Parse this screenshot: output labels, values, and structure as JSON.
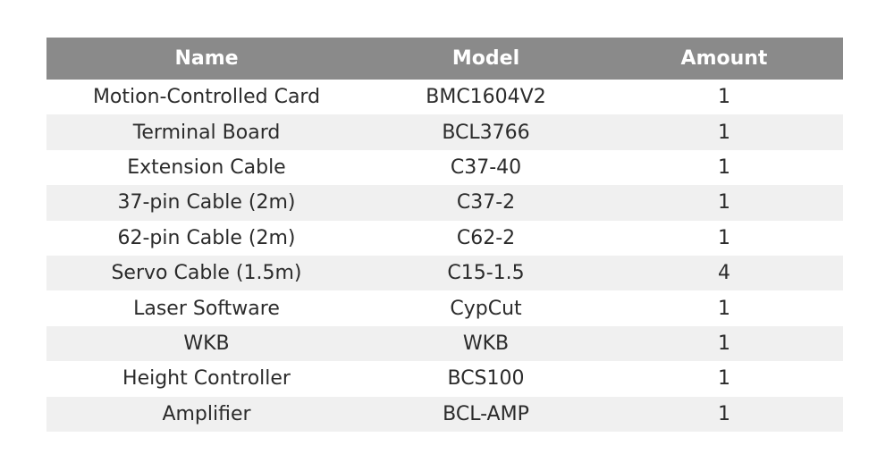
{
  "table": {
    "headers": [
      "Name",
      "Model",
      "Amount"
    ],
    "rows": [
      [
        "Motion-Controlled Card",
        "BMC1604V2",
        "1"
      ],
      [
        "Terminal Board",
        "BCL3766",
        "1"
      ],
      [
        "Extension Cable",
        "C37-40",
        "1"
      ],
      [
        "37-pin Cable (2m)",
        "C37-2",
        "1"
      ],
      [
        "62-pin Cable (2m)",
        "C62-2",
        "1"
      ],
      [
        "Servo Cable (1.5m)",
        "C15-1.5",
        "4"
      ],
      [
        "Laser Software",
        "CypCut",
        "1"
      ],
      [
        "WKB",
        "WKB",
        "1"
      ],
      [
        "Height Controller",
        "BCS100",
        "1"
      ],
      [
        "Amplifier",
        "BCL-AMP",
        "1"
      ]
    ]
  },
  "colors": {
    "header_bg": "#8a8a8a",
    "header_text": "#ffffff",
    "row_alt_bg": "#f0f0f0",
    "text": "#2b2b2b"
  }
}
